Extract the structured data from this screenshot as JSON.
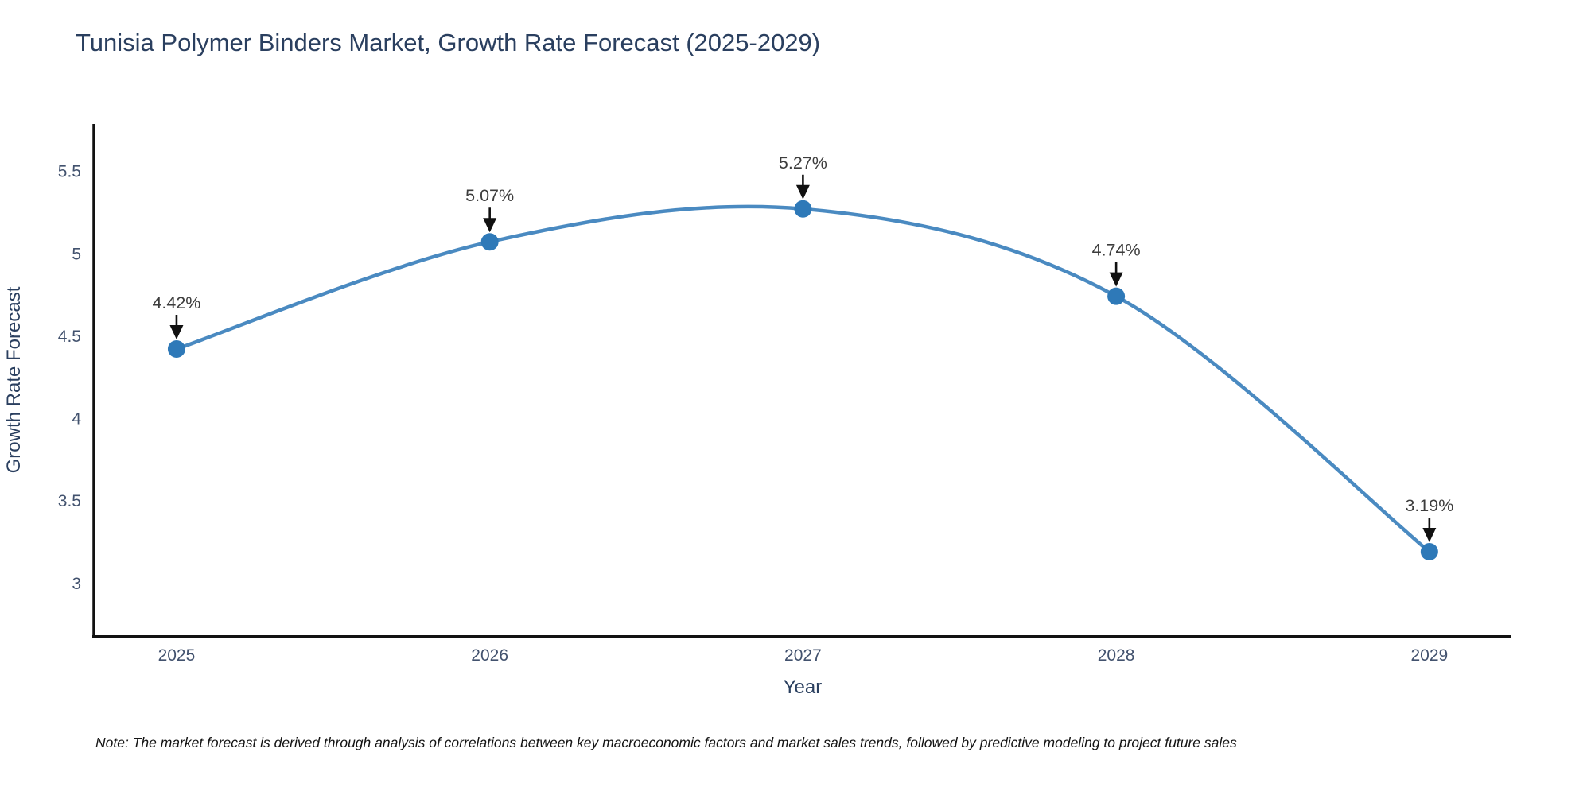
{
  "chart_data": {
    "type": "line",
    "title": "Tunisia Polymer Binders Market, Growth Rate Forecast (2025-2029)",
    "xlabel": "Year",
    "ylabel": "Growth Rate Forecast",
    "x": [
      2025,
      2026,
      2027,
      2028,
      2029
    ],
    "values": [
      4.42,
      5.07,
      5.27,
      4.74,
      3.19
    ],
    "point_labels": [
      "4.42%",
      "5.07%",
      "5.27%",
      "4.74%",
      "3.19%"
    ],
    "x_tick_labels": [
      "2025",
      "2026",
      "2027",
      "2028",
      "2029"
    ],
    "y_ticks": [
      5.5,
      5.0,
      4.5,
      4.0,
      3.5,
      3.0
    ],
    "y_tick_labels": [
      "5.5",
      "5",
      "4.5",
      "4",
      "3.5",
      "3"
    ],
    "xlim": [
      2024.736,
      2029.262
    ],
    "ylim": [
      2.674,
      5.785
    ],
    "grid": false,
    "legend": "none",
    "line_shape": "spline",
    "annotation_style": "black-down-arrow",
    "colors": {
      "line": "#4a8ac1",
      "marker": "#2e79b8",
      "axis": "#111111",
      "arrow": "#111111",
      "title": "#2a3f5f",
      "axis_title": "#2a3f5f",
      "tick": "#42526e",
      "annotation": "#3d3d3d",
      "background": "#ffffff"
    }
  },
  "note": {
    "text": "Note: The market forecast is derived through analysis of correlations between key macroeconomic factors and market sales trends, followed by predictive modeling to project future sales"
  }
}
